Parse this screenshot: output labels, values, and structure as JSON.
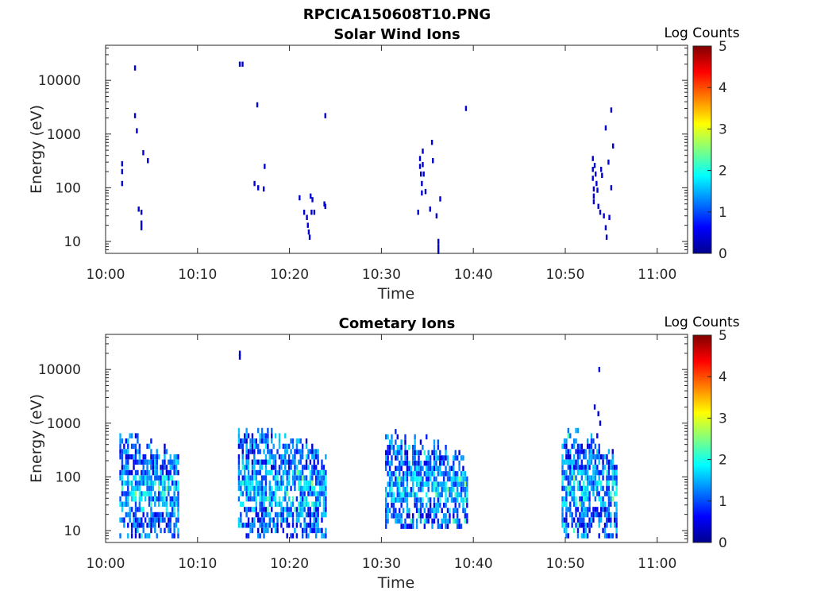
{
  "figure_title": "RPCICA150608T10.PNG",
  "chart_data": [
    {
      "type": "heatmap",
      "title": "Solar Wind Ions",
      "xlabel": "Time",
      "ylabel": "Energy (eV)",
      "x_axis": {
        "ticks": [
          "10:00",
          "10:10",
          "10:20",
          "10:30",
          "10:40",
          "10:50",
          "11:00"
        ],
        "range_minutes": [
          0,
          63.3
        ]
      },
      "y_axis": {
        "scale": "log",
        "ticks": [
          10,
          100,
          1000,
          10000
        ],
        "tick_labels": [
          "10",
          "100",
          "1000",
          "10000"
        ],
        "range": [
          6,
          45000
        ]
      },
      "colorbar": {
        "title": "Log Counts",
        "range": [
          0,
          5
        ],
        "ticks": [
          "0",
          "1",
          "2",
          "3",
          "4",
          "5"
        ],
        "colormap": "jet"
      },
      "grid": false,
      "cells": [
        [
          1.8,
          280,
          0.4
        ],
        [
          1.8,
          200,
          0.4
        ],
        [
          1.8,
          120,
          0.4
        ],
        [
          3.2,
          17000,
          0.4
        ],
        [
          3.2,
          2200,
          0.4
        ],
        [
          3.4,
          1150,
          0.4
        ],
        [
          3.6,
          40,
          0.4
        ],
        [
          3.9,
          35,
          0.4
        ],
        [
          3.9,
          22,
          0.4
        ],
        [
          3.9,
          18,
          0.4
        ],
        [
          4.1,
          450,
          0.4
        ],
        [
          4.6,
          320,
          0.4
        ],
        [
          14.6,
          20000,
          0.4
        ],
        [
          14.9,
          20000,
          0.4
        ],
        [
          16.2,
          120,
          0.4
        ],
        [
          16.5,
          3500,
          0.4
        ],
        [
          16.6,
          100,
          0.4
        ],
        [
          17.2,
          95,
          0.4
        ],
        [
          17.3,
          250,
          0.4
        ],
        [
          21.1,
          65,
          0.4
        ],
        [
          21.6,
          35,
          0.4
        ],
        [
          21.9,
          28,
          0.4
        ],
        [
          22.0,
          20,
          0.4
        ],
        [
          22.1,
          15,
          0.4
        ],
        [
          22.2,
          12,
          0.4
        ],
        [
          22.3,
          70,
          0.4
        ],
        [
          22.5,
          60,
          0.4
        ],
        [
          22.4,
          35,
          0.4
        ],
        [
          22.7,
          35,
          0.4
        ],
        [
          23.8,
          50,
          0.4
        ],
        [
          23.9,
          45,
          0.4
        ],
        [
          23.9,
          2200,
          0.4
        ],
        [
          34.2,
          350,
          0.4
        ],
        [
          34.2,
          250,
          0.4
        ],
        [
          34.3,
          180,
          0.4
        ],
        [
          34.4,
          120,
          0.4
        ],
        [
          34.5,
          480,
          0.4
        ],
        [
          34.5,
          270,
          0.4
        ],
        [
          34.6,
          180,
          0.4
        ],
        [
          34.4,
          80,
          0.4
        ],
        [
          34.0,
          35,
          0.4
        ],
        [
          34.8,
          85,
          0.4
        ],
        [
          35.3,
          40,
          0.4
        ],
        [
          35.5,
          700,
          0.4
        ],
        [
          35.6,
          320,
          0.4
        ],
        [
          36.0,
          30,
          0.4
        ],
        [
          36.2,
          10,
          0.4
        ],
        [
          36.2,
          8,
          0.4
        ],
        [
          36.2,
          6.5,
          0.4
        ],
        [
          36.4,
          62,
          0.4
        ],
        [
          39.2,
          3000,
          0.4
        ],
        [
          53.0,
          350,
          0.4
        ],
        [
          53.0,
          220,
          0.4
        ],
        [
          53.0,
          150,
          0.4
        ],
        [
          53.1,
          95,
          0.4
        ],
        [
          53.1,
          70,
          0.4
        ],
        [
          53.1,
          55,
          0.4
        ],
        [
          53.2,
          260,
          0.4
        ],
        [
          53.3,
          180,
          0.4
        ],
        [
          53.4,
          120,
          0.4
        ],
        [
          53.5,
          90,
          0.4
        ],
        [
          53.6,
          45,
          0.4
        ],
        [
          53.8,
          35,
          0.4
        ],
        [
          53.9,
          220,
          0.4
        ],
        [
          54.0,
          170,
          0.4
        ],
        [
          54.2,
          30,
          0.4
        ],
        [
          54.4,
          18,
          0.4
        ],
        [
          54.5,
          12,
          0.4
        ],
        [
          54.4,
          1300,
          0.4
        ],
        [
          54.7,
          300,
          0.4
        ],
        [
          54.8,
          28,
          0.4
        ],
        [
          55.0,
          2800,
          0.4
        ],
        [
          55.0,
          100,
          0.4
        ],
        [
          55.2,
          600,
          0.4
        ]
      ]
    },
    {
      "type": "heatmap",
      "title": "Cometary Ions",
      "xlabel": "Time",
      "ylabel": "Energy (eV)",
      "x_axis": {
        "ticks": [
          "10:00",
          "10:10",
          "10:20",
          "10:30",
          "10:40",
          "10:50",
          "11:00"
        ],
        "range_minutes": [
          0,
          63.3
        ]
      },
      "y_axis": {
        "scale": "log",
        "ticks": [
          10,
          100,
          1000,
          10000
        ],
        "tick_labels": [
          "10",
          "100",
          "1000",
          "10000"
        ],
        "range": [
          6,
          45000
        ]
      },
      "colorbar": {
        "title": "Log Counts",
        "range": [
          0,
          5
        ],
        "ticks": [
          "0",
          "1",
          "2",
          "3",
          "4",
          "5"
        ],
        "colormap": "jet"
      },
      "grid": false,
      "bursts": [
        {
          "t0": 1.6,
          "t1": 8.0,
          "e_lo": 8,
          "e_hi": 700
        },
        {
          "t0": 14.5,
          "t1": 24.0,
          "e_lo": 8,
          "e_hi": 900
        },
        {
          "t0": 30.5,
          "t1": 39.5,
          "e_lo": 12,
          "e_hi": 700
        },
        {
          "t0": 49.7,
          "t1": 55.7,
          "e_lo": 8,
          "e_hi": 800
        }
      ],
      "cells": [
        [
          14.6,
          20000,
          0.4
        ],
        [
          14.6,
          17000,
          0.4
        ],
        [
          53.7,
          10000,
          0.5
        ],
        [
          53.2,
          2000,
          0.4
        ],
        [
          53.6,
          1500,
          0.4
        ],
        [
          53.8,
          1000,
          0.4
        ]
      ]
    }
  ]
}
